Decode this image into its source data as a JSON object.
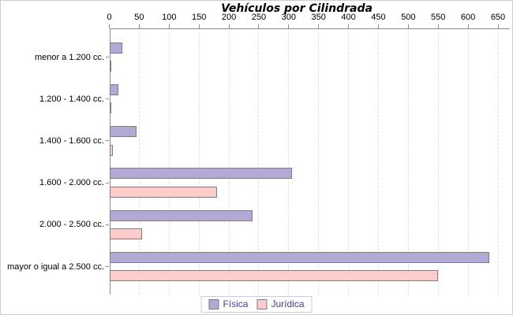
{
  "chart_data": {
    "type": "bar",
    "orientation": "horizontal",
    "title": "Vehículos por Cilindrada",
    "xlabel": "",
    "ylabel": "",
    "xlim": [
      0,
      650
    ],
    "xtick_labels": [
      "0",
      "50",
      "100",
      "150",
      "200",
      "250",
      "300",
      "350",
      "400",
      "450",
      "500",
      "550",
      "600",
      "650"
    ],
    "grid": "vertical dashed lines",
    "legend_position": "bottom-center",
    "categories": [
      "menor a 1.200 cc.",
      "1.200 - 1.400 cc.",
      "1.400 - 1.600 cc.",
      "1.600 - 2.000 cc.",
      "2.000 - 2.500 cc.",
      "mayor o igual a 2.500 cc."
    ],
    "series": [
      {
        "name": "Física",
        "color": "#b3a9d4",
        "values": [
          22,
          15,
          45,
          305,
          240,
          635
        ]
      },
      {
        "name": "Jurídica",
        "color": "#fecccb",
        "values": [
          1,
          3,
          6,
          180,
          55,
          550
        ]
      }
    ],
    "colors": {
      "bar_border": "#7d7d7d",
      "axis": "#8c8c8c",
      "gridline": "#e1e1e1",
      "legend_text": "#483d8b",
      "background": "#ffffff"
    }
  }
}
